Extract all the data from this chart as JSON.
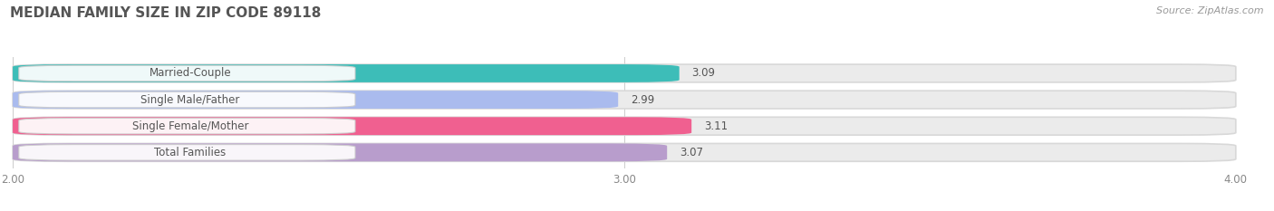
{
  "title": "MEDIAN FAMILY SIZE IN ZIP CODE 89118",
  "source": "Source: ZipAtlas.com",
  "categories": [
    "Married-Couple",
    "Single Male/Father",
    "Single Female/Mother",
    "Total Families"
  ],
  "values": [
    3.09,
    2.99,
    3.11,
    3.07
  ],
  "bar_colors": [
    "#3dbdb8",
    "#aabbee",
    "#f06090",
    "#b89dcc"
  ],
  "background_color": "#ffffff",
  "bar_bg_color": "#ebebeb",
  "xlim": [
    2.0,
    4.0
  ],
  "xticks": [
    2.0,
    3.0,
    4.0
  ],
  "xtick_labels": [
    "2.00",
    "3.00",
    "4.00"
  ],
  "title_fontsize": 11,
  "label_fontsize": 8.5,
  "value_fontsize": 8.5,
  "source_fontsize": 8
}
